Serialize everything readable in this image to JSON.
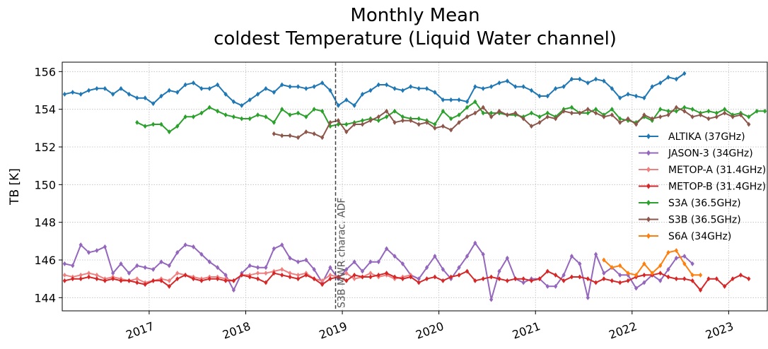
{
  "chart_data": {
    "type": "line",
    "title": "Monthly Mean",
    "subtitle": "coldest Temperature (Liquid Water channel)",
    "y_label": "TB [K]",
    "x": [
      2016.125,
      2016.208,
      2016.292,
      2016.375,
      2016.458,
      2016.542,
      2016.625,
      2016.708,
      2016.792,
      2016.875,
      2016.958,
      2017.042,
      2017.125,
      2017.208,
      2017.292,
      2017.375,
      2017.458,
      2017.542,
      2017.625,
      2017.708,
      2017.792,
      2017.875,
      2017.958,
      2018.042,
      2018.125,
      2018.208,
      2018.292,
      2018.375,
      2018.458,
      2018.542,
      2018.625,
      2018.708,
      2018.792,
      2018.875,
      2018.958,
      2019.042,
      2019.125,
      2019.208,
      2019.292,
      2019.375,
      2019.458,
      2019.542,
      2019.625,
      2019.708,
      2019.792,
      2019.875,
      2019.958,
      2020.042,
      2020.125,
      2020.208,
      2020.292,
      2020.375,
      2020.458,
      2020.542,
      2020.625,
      2020.708,
      2020.792,
      2020.875,
      2020.958,
      2021.042,
      2021.125,
      2021.208,
      2021.292,
      2021.375,
      2021.458,
      2021.542,
      2021.625,
      2021.708,
      2021.792,
      2021.875,
      2021.958,
      2022.042,
      2022.125,
      2022.208,
      2022.292,
      2022.375,
      2022.458,
      2022.542,
      2022.625,
      2022.708,
      2022.792,
      2022.875,
      2022.958,
      2023.042,
      2023.125,
      2023.208,
      2023.292,
      2023.375
    ],
    "series": [
      {
        "name": "ALTIKA (37GHz)",
        "color": "#1f77b4",
        "values": [
          154.8,
          154.9,
          154.8,
          155.0,
          155.1,
          155.1,
          154.8,
          155.1,
          154.8,
          154.6,
          154.6,
          154.3,
          154.7,
          155.0,
          154.9,
          155.3,
          155.4,
          155.1,
          155.1,
          155.3,
          154.8,
          154.4,
          154.2,
          154.5,
          154.8,
          155.1,
          154.9,
          155.3,
          155.2,
          155.2,
          155.1,
          155.2,
          155.4,
          155.0,
          154.2,
          154.5,
          154.2,
          154.8,
          155.0,
          155.3,
          155.3,
          155.1,
          155.0,
          155.2,
          155.1,
          155.1,
          154.9,
          154.5,
          154.5,
          154.5,
          154.4,
          155.2,
          155.1,
          155.2,
          155.4,
          155.5,
          155.2,
          155.2,
          155.0,
          154.7,
          154.7,
          155.1,
          155.2,
          155.6,
          155.6,
          155.4,
          155.6,
          155.5,
          155.1,
          154.6,
          154.8,
          154.7,
          154.6,
          155.2,
          155.4,
          155.7,
          155.6,
          155.9,
          null,
          null,
          null,
          null,
          null,
          null,
          null,
          null,
          null,
          null
        ]
      },
      {
        "name": "JASON-3 (34GHz)",
        "color": "#9467bd",
        "values": [
          145.8,
          145.7,
          146.8,
          146.4,
          146.5,
          146.7,
          145.3,
          145.8,
          145.3,
          145.7,
          145.6,
          145.5,
          145.9,
          145.7,
          146.4,
          146.8,
          146.7,
          146.3,
          145.9,
          145.6,
          145.2,
          144.4,
          145.3,
          145.7,
          145.6,
          145.6,
          146.6,
          146.8,
          146.1,
          145.9,
          146.0,
          145.5,
          144.8,
          145.6,
          145.0,
          145.5,
          145.9,
          145.4,
          145.9,
          145.9,
          146.6,
          146.2,
          145.8,
          145.2,
          145.0,
          145.6,
          146.2,
          145.5,
          145.0,
          145.6,
          146.2,
          146.9,
          146.3,
          143.9,
          145.4,
          146.1,
          145.0,
          144.8,
          145.0,
          145.0,
          144.6,
          144.6,
          145.2,
          146.2,
          145.8,
          144.0,
          146.3,
          145.3,
          145.6,
          145.2,
          145.2,
          144.5,
          144.8,
          145.2,
          144.9,
          145.5,
          146.1,
          146.2,
          145.8,
          null,
          null,
          null,
          null,
          null,
          null,
          null,
          null,
          null
        ]
      },
      {
        "name": "METOP-A (31.4GHz)",
        "color": "#f08080",
        "values": [
          145.2,
          145.1,
          145.2,
          145.3,
          145.2,
          145.0,
          145.1,
          145.0,
          144.9,
          145.0,
          144.8,
          144.9,
          145.0,
          144.9,
          145.3,
          145.2,
          145.1,
          145.0,
          145.1,
          145.1,
          145.0,
          144.9,
          145.2,
          145.2,
          145.3,
          145.3,
          145.4,
          145.5,
          145.3,
          145.2,
          145.3,
          145.0,
          144.9,
          145.2,
          145.1,
          145.3,
          145.0,
          145.1,
          145.3,
          145.1,
          145.2,
          145.0,
          145.1,
          145.2,
          null,
          null,
          null,
          null,
          null,
          null,
          null,
          null,
          null,
          null,
          null,
          null,
          null,
          null,
          null,
          null,
          null,
          null,
          null,
          null,
          null,
          null,
          null,
          null,
          null,
          null,
          null,
          null,
          null,
          null,
          null,
          null,
          null,
          null,
          null,
          null,
          null,
          null,
          null,
          null,
          null,
          null,
          null,
          null
        ]
      },
      {
        "name": "METOP-B (31.4GHz)",
        "color": "#d62728",
        "values": [
          144.9,
          145.0,
          145.0,
          145.1,
          145.0,
          144.9,
          145.0,
          144.9,
          144.9,
          144.8,
          144.7,
          144.9,
          144.9,
          144.6,
          145.0,
          145.2,
          145.0,
          144.9,
          145.0,
          145.0,
          144.9,
          144.9,
          145.2,
          145.1,
          145.0,
          144.8,
          145.3,
          145.2,
          145.1,
          145.0,
          145.2,
          145.0,
          144.7,
          145.0,
          145.1,
          144.9,
          145.2,
          145.1,
          145.1,
          145.2,
          145.3,
          145.1,
          145.0,
          145.1,
          144.8,
          145.0,
          145.1,
          144.9,
          145.1,
          145.2,
          145.4,
          144.9,
          145.0,
          145.1,
          145.0,
          144.9,
          145.0,
          145.0,
          144.9,
          145.0,
          145.4,
          145.2,
          144.9,
          145.1,
          145.1,
          145.0,
          144.8,
          145.0,
          144.9,
          144.8,
          144.9,
          145.1,
          145.2,
          145.2,
          145.3,
          145.1,
          145.0,
          145.0,
          144.9,
          144.4,
          145.0,
          145.0,
          144.6,
          145.0,
          145.2,
          145.0,
          null,
          null
        ]
      },
      {
        "name": "S3A (36.5GHz)",
        "color": "#2ca02c",
        "values": [
          null,
          null,
          null,
          null,
          null,
          null,
          null,
          null,
          null,
          153.3,
          153.1,
          153.2,
          153.2,
          152.8,
          153.1,
          153.6,
          153.6,
          153.8,
          154.1,
          153.9,
          153.7,
          153.6,
          153.5,
          153.5,
          153.7,
          153.6,
          153.3,
          154.0,
          153.7,
          153.8,
          153.6,
          154.0,
          153.9,
          153.1,
          153.2,
          153.2,
          153.3,
          153.4,
          153.5,
          153.4,
          153.6,
          153.9,
          153.6,
          153.5,
          153.5,
          153.4,
          153.2,
          153.9,
          153.5,
          153.7,
          154.1,
          154.4,
          153.8,
          153.8,
          153.8,
          153.7,
          153.7,
          153.6,
          153.8,
          153.6,
          153.8,
          153.6,
          154.0,
          154.1,
          153.8,
          153.8,
          154.0,
          153.7,
          154.0,
          153.5,
          153.4,
          153.3,
          153.6,
          153.4,
          154.0,
          153.9,
          153.9,
          154.1,
          154.0,
          153.8,
          153.9,
          153.8,
          154.0,
          153.7,
          153.8,
          153.6,
          153.9,
          153.9
        ]
      },
      {
        "name": "S3B (36.5GHz)",
        "color": "#8c564b",
        "values": [
          null,
          null,
          null,
          null,
          null,
          null,
          null,
          null,
          null,
          null,
          null,
          null,
          null,
          null,
          null,
          null,
          null,
          null,
          null,
          null,
          null,
          null,
          null,
          null,
          null,
          null,
          152.7,
          152.6,
          152.6,
          152.5,
          152.8,
          152.7,
          152.5,
          153.3,
          153.4,
          152.8,
          153.2,
          153.2,
          153.4,
          153.6,
          153.9,
          153.3,
          153.4,
          153.4,
          153.2,
          153.3,
          153.0,
          153.1,
          152.9,
          153.3,
          153.6,
          153.8,
          154.1,
          153.6,
          153.9,
          153.7,
          153.8,
          153.5,
          153.1,
          153.3,
          153.6,
          153.5,
          153.9,
          153.8,
          153.8,
          154.0,
          153.8,
          153.6,
          153.7,
          153.3,
          153.5,
          153.2,
          153.7,
          153.5,
          153.6,
          153.7,
          154.1,
          153.9,
          153.6,
          153.7,
          153.5,
          153.6,
          153.8,
          153.6,
          153.7,
          153.2,
          null,
          null
        ]
      },
      {
        "name": "S6A (34GHz)",
        "color": "#ff7f0e",
        "values": [
          null,
          null,
          null,
          null,
          null,
          null,
          null,
          null,
          null,
          null,
          null,
          null,
          null,
          null,
          null,
          null,
          null,
          null,
          null,
          null,
          null,
          null,
          null,
          null,
          null,
          null,
          null,
          null,
          null,
          null,
          null,
          null,
          null,
          null,
          null,
          null,
          null,
          null,
          null,
          null,
          null,
          null,
          null,
          null,
          null,
          null,
          null,
          null,
          null,
          null,
          null,
          null,
          null,
          null,
          null,
          null,
          null,
          null,
          null,
          null,
          null,
          null,
          null,
          null,
          null,
          null,
          null,
          146.0,
          145.6,
          145.7,
          145.3,
          145.2,
          145.8,
          145.3,
          145.7,
          146.4,
          146.5,
          145.8,
          145.2,
          145.2,
          null,
          null,
          null,
          null,
          null,
          null,
          null,
          null
        ]
      }
    ],
    "vline": {
      "x": 2018.93,
      "label": "S3B MWR charac. ADF"
    },
    "xlim": [
      2016.1,
      2023.4
    ],
    "xticks": [
      2017,
      2018,
      2019,
      2020,
      2021,
      2022,
      2023
    ],
    "ylim": [
      143.3,
      156.5
    ],
    "yticks": [
      144,
      146,
      148,
      150,
      152,
      154,
      156
    ],
    "grid": true,
    "legend": "right"
  }
}
